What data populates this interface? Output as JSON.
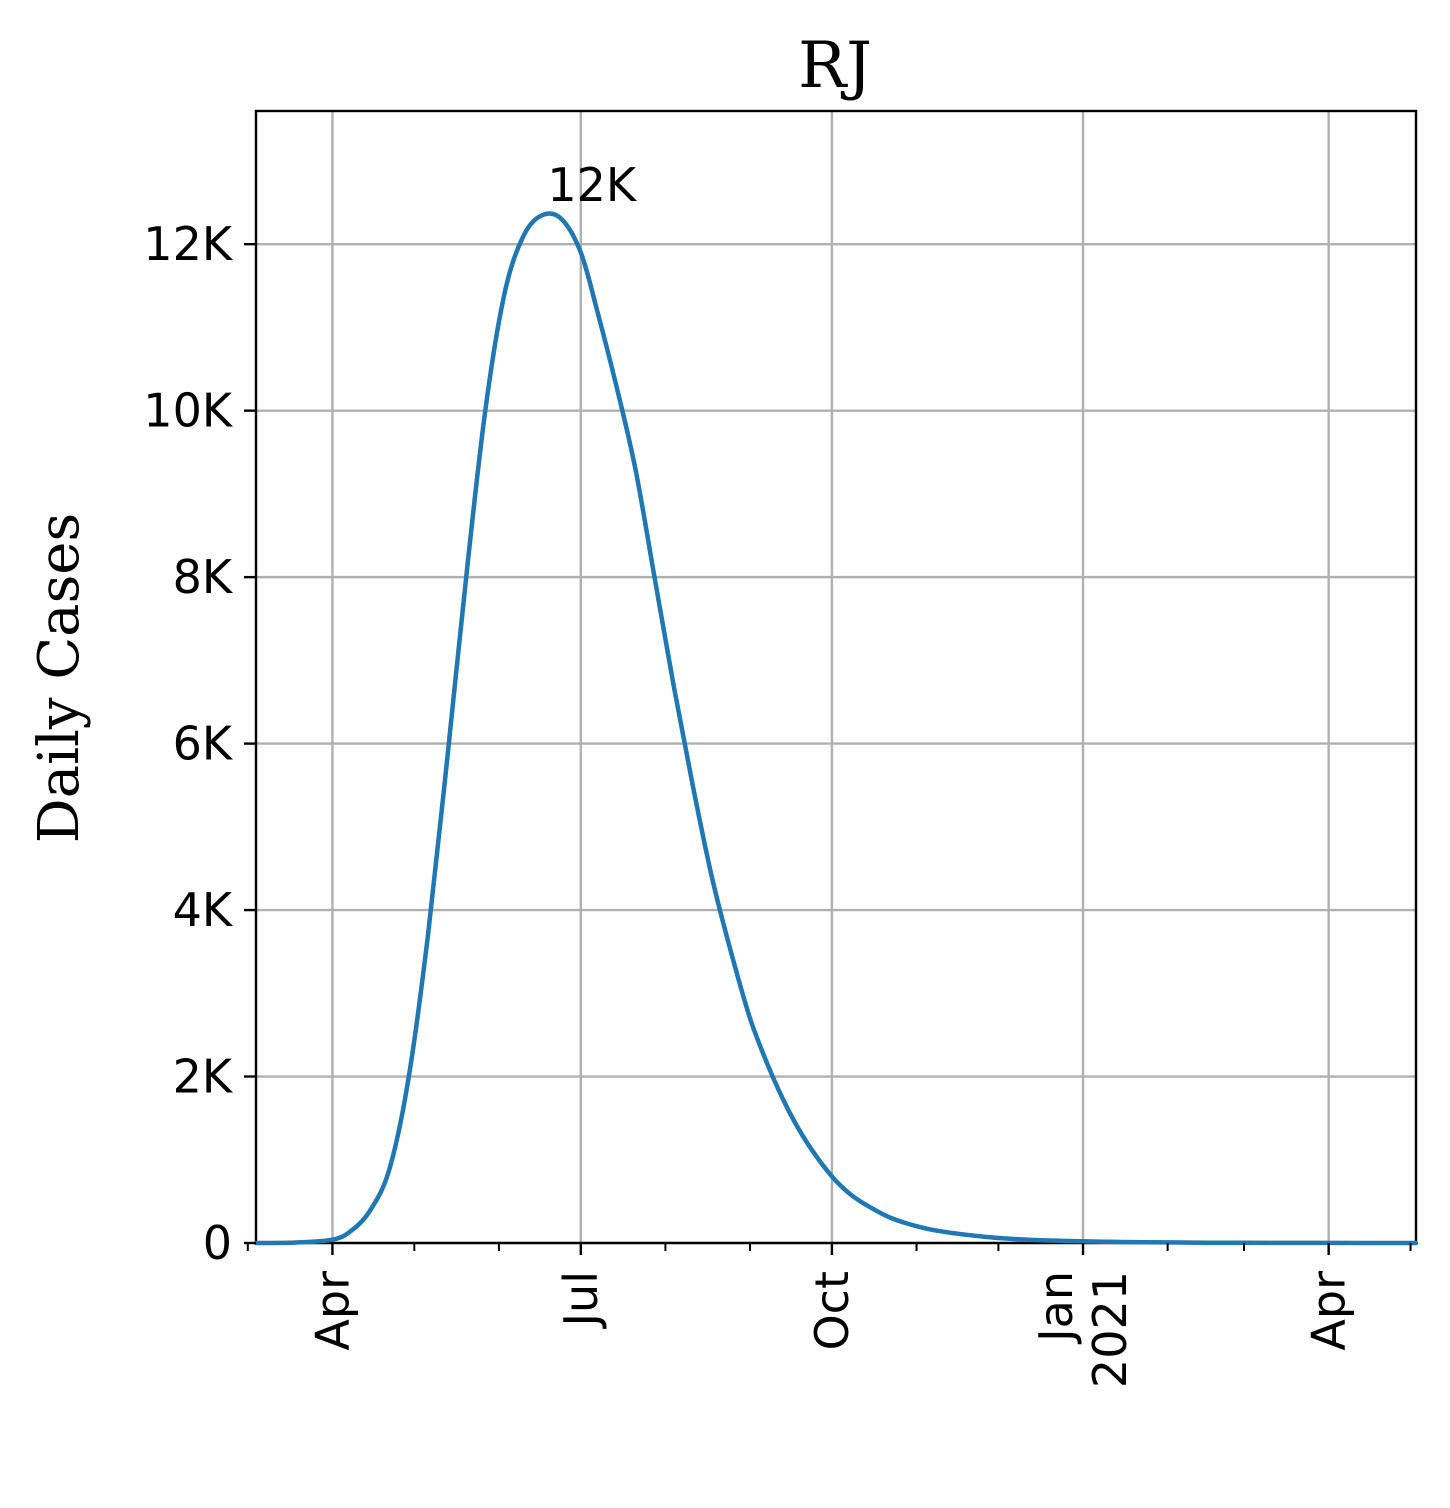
{
  "chart_data": {
    "type": "line",
    "title": "RJ",
    "xlabel": "",
    "ylabel": "Daily Cases",
    "x_range": [
      "2020-03-04",
      "2021-05-03"
    ],
    "ylim": [
      0,
      13600
    ],
    "y_ticks": [
      {
        "value": 0,
        "label": "0"
      },
      {
        "value": 2000,
        "label": "2K"
      },
      {
        "value": 4000,
        "label": "4K"
      },
      {
        "value": 6000,
        "label": "6K"
      },
      {
        "value": 8000,
        "label": "8K"
      },
      {
        "value": 10000,
        "label": "10K"
      },
      {
        "value": 12000,
        "label": "12K"
      }
    ],
    "x_ticks": [
      {
        "date": "2020-04-01",
        "label": "Apr"
      },
      {
        "date": "2020-07-01",
        "label": "Jul"
      },
      {
        "date": "2020-10-01",
        "label": "Oct"
      },
      {
        "date": "2021-01-01",
        "label": "Jan\n2021"
      },
      {
        "date": "2021-04-01",
        "label": "Apr"
      }
    ],
    "x_minor_ticks": [
      "2020-03-01",
      "2020-05-01",
      "2020-06-01",
      "2020-08-01",
      "2020-09-01",
      "2020-11-01",
      "2020-12-01",
      "2021-02-01",
      "2021-03-01",
      "2021-05-01"
    ],
    "grid": true,
    "color": "#1f77b4",
    "series": [
      {
        "x": [
          "2020-03-04",
          "2020-03-18",
          "2020-04-01",
          "2020-04-08",
          "2020-04-15",
          "2020-04-22",
          "2020-04-29",
          "2020-05-06",
          "2020-05-13",
          "2020-05-20",
          "2020-05-27",
          "2020-06-03",
          "2020-06-10",
          "2020-06-17",
          "2020-06-24",
          "2020-07-01",
          "2020-07-07",
          "2020-07-14",
          "2020-07-21",
          "2020-07-28",
          "2020-08-04",
          "2020-08-11",
          "2020-08-18",
          "2020-08-25",
          "2020-09-01",
          "2020-09-08",
          "2020-09-15",
          "2020-09-22",
          "2020-10-01",
          "2020-10-08",
          "2020-10-15",
          "2020-10-22",
          "2020-10-29",
          "2020-11-05",
          "2020-11-12",
          "2020-11-19",
          "2020-11-26",
          "2020-12-03",
          "2020-12-15",
          "2021-01-01",
          "2021-01-15",
          "2021-02-01",
          "2021-02-15",
          "2021-03-01",
          "2021-04-01",
          "2021-05-03"
        ],
        "values": [
          0,
          5,
          40,
          150,
          400,
          900,
          2000,
          3700,
          5800,
          8000,
          10000,
          11400,
          12100,
          12350,
          12300,
          11900,
          11200,
          10300,
          9300,
          8000,
          6700,
          5500,
          4400,
          3500,
          2700,
          2100,
          1600,
          1200,
          800,
          580,
          430,
          310,
          230,
          170,
          130,
          100,
          75,
          55,
          35,
          20,
          12,
          7,
          4,
          3,
          1,
          0
        ]
      }
    ],
    "annotations": [
      {
        "text": "12K",
        "x": "2020-07-05",
        "y": 12300
      }
    ]
  }
}
